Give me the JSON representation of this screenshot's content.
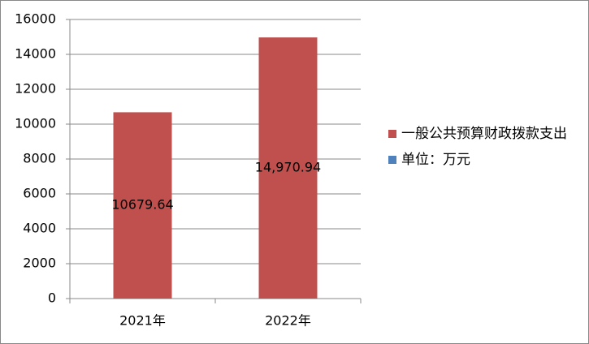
{
  "chart_data": {
    "type": "bar",
    "categories": [
      "2021年",
      "2022年"
    ],
    "series": [
      {
        "name": "一般公共预算财政拨款支出",
        "color": "#c0504d",
        "values": [
          10679.64,
          14970.94
        ],
        "value_labels": [
          "10679.64",
          "14,970.94"
        ]
      },
      {
        "name": "单位：万元",
        "color": "#4f81bd",
        "values": [
          null,
          null
        ]
      }
    ],
    "ylim": [
      0,
      16000
    ],
    "yticks": [
      0,
      2000,
      4000,
      6000,
      8000,
      10000,
      12000,
      14000,
      16000
    ],
    "grid": true,
    "legend": "right"
  }
}
